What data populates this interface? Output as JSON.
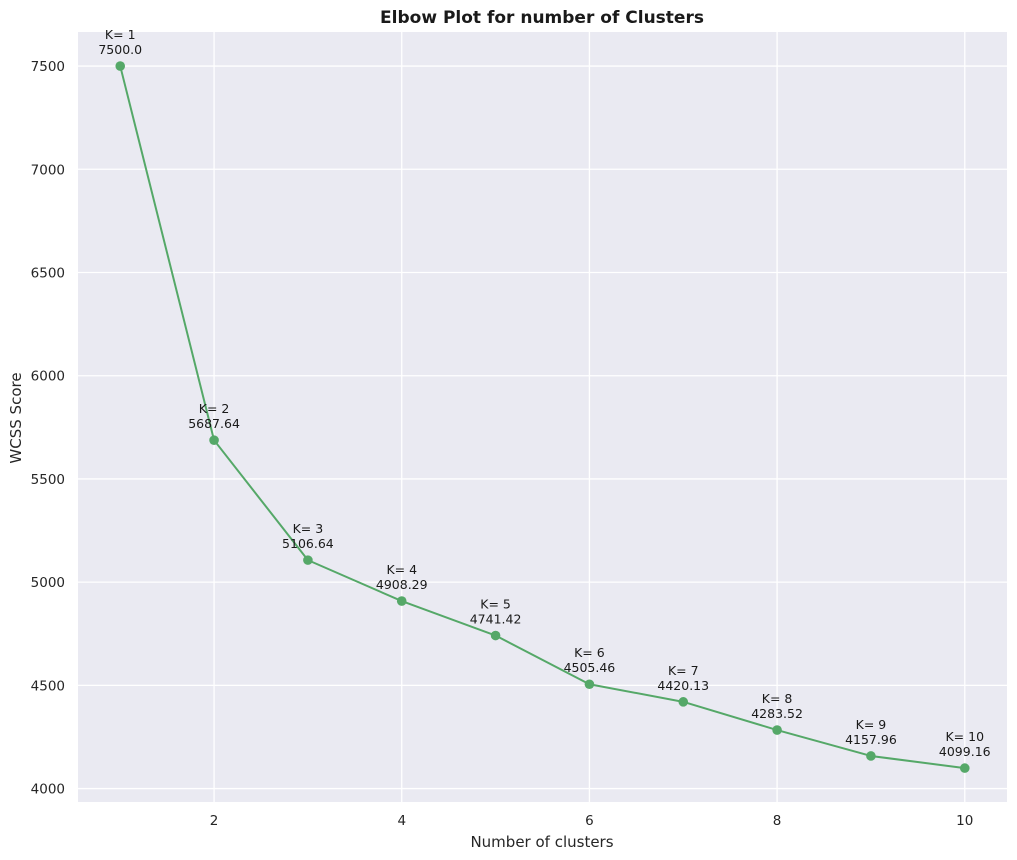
{
  "chart_data": {
    "type": "line",
    "title": "Elbow Plot for number of Clusters",
    "xlabel": "Number of clusters",
    "ylabel": "WCSS Score",
    "x": [
      1,
      2,
      3,
      4,
      5,
      6,
      7,
      8,
      9,
      10
    ],
    "series": [
      {
        "values": [
          7500.0,
          5687.64,
          5106.64,
          4908.29,
          4741.42,
          4505.46,
          4420.13,
          4283.52,
          4157.96,
          4099.16
        ],
        "color": "#55a868",
        "marker": "circle"
      }
    ],
    "annotations": [
      {
        "line1": "K= 1",
        "line2": "7500.0"
      },
      {
        "line1": "K= 2",
        "line2": "5687.64"
      },
      {
        "line1": "K= 3",
        "line2": "5106.64"
      },
      {
        "line1": "K= 4",
        "line2": "4908.29"
      },
      {
        "line1": "K= 5",
        "line2": "4741.42"
      },
      {
        "line1": "K= 6",
        "line2": "4505.46"
      },
      {
        "line1": "K= 7",
        "line2": "4420.13"
      },
      {
        "line1": "K= 8",
        "line2": "4283.52"
      },
      {
        "line1": "K= 9",
        "line2": "4157.96"
      },
      {
        "line1": "K= 10",
        "line2": "4099.16"
      }
    ],
    "xticks": [
      2,
      4,
      6,
      8,
      10
    ],
    "yticks": [
      4000,
      4500,
      5000,
      5500,
      6000,
      6500,
      7000,
      7500
    ],
    "xlim": [
      0.55,
      10.45
    ],
    "ylim": [
      3935,
      7665
    ],
    "grid": true,
    "background": "#eaeaf2",
    "grid_color": "#ffffff"
  }
}
